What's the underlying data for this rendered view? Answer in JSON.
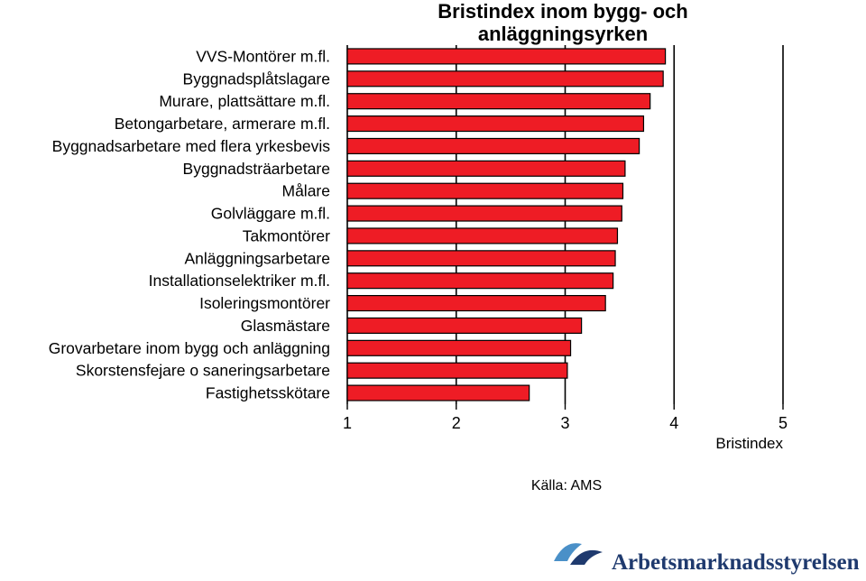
{
  "chart_data": {
    "type": "bar",
    "orientation": "horizontal",
    "title": "Bristindex inom bygg- och anläggningsyrken",
    "title_lines": [
      "Bristindex inom bygg- och",
      "anläggningsyrken"
    ],
    "categories": [
      "VVS-Montörer m.fl.",
      "Byggnadsplåtslagare",
      "Murare, plattsättare m.fl.",
      "Betongarbetare, armerare m.fl.",
      "Byggnadsarbetare med flera yrkesbevis",
      "Byggnadsträarbetare",
      "Målare",
      "Golvläggare m.fl.",
      "Takmontörer",
      "Anläggningsarbetare",
      "Installationselektriker m.fl.",
      "Isoleringsmontörer",
      "Glasmästare",
      "Grovarbetare inom bygg och anläggning",
      "Skorstensfejare o saneringsarbetare",
      "Fastighetsskötare"
    ],
    "values": [
      3.92,
      3.9,
      3.78,
      3.72,
      3.68,
      3.55,
      3.53,
      3.52,
      3.48,
      3.46,
      3.44,
      3.37,
      3.15,
      3.05,
      3.02,
      2.67
    ],
    "xlabel": "Bristindex",
    "ylabel": "",
    "xlim": [
      1,
      5
    ],
    "xticks": [
      "1",
      "2",
      "3",
      "4",
      "5"
    ],
    "grid": true,
    "bar_color": "#ee1c25",
    "source": "Källa: AMS"
  },
  "logo": {
    "text": "Arbetsmarknadsstyrelsen",
    "color": "#1f3a6e",
    "accent": "#4a90c8"
  }
}
